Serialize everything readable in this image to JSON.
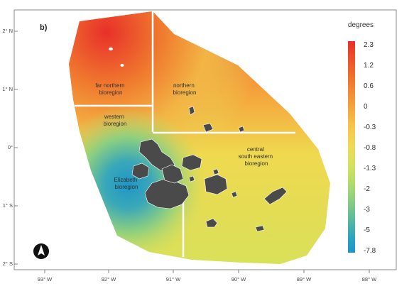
{
  "panel_label": "b)",
  "colors": {
    "warm": "#e8302a",
    "cool": "#1fa0c8",
    "island": "#4a4a4a",
    "boundary": "#ffffff",
    "frame": "#888888"
  },
  "axes": {
    "x_ticks": [
      "93° W",
      "92° W",
      "91° W",
      "90° W",
      "89° W",
      "88° W"
    ],
    "y_ticks": [
      "2° N",
      "1° N",
      "0°",
      "1° S",
      "2° S"
    ]
  },
  "regions": {
    "far_northern": [
      "far northern",
      "bioregion"
    ],
    "northern": [
      "northern",
      "bioregion"
    ],
    "western": [
      "western",
      "bioregion"
    ],
    "central": [
      "central",
      "south eastern",
      "bioregion"
    ],
    "elizabeth": [
      "Elizabeth",
      "bioregion"
    ]
  },
  "legend": {
    "title": "degrees",
    "labels": [
      "2.3",
      "1.2",
      "0.6",
      "0",
      "-0.3",
      "-0.8",
      "-1.3",
      "-2",
      "-3",
      "-5",
      "-7.8"
    ],
    "gradient": [
      "#e8302a",
      "#f06a2a",
      "#f5a03a",
      "#f7c44a",
      "#eedb55",
      "#d6e15e",
      "#b7dd68",
      "#8ccf80",
      "#55b8a0",
      "#2aa4c0",
      "#1e96c8"
    ]
  },
  "north_arrow": "north-arrow"
}
